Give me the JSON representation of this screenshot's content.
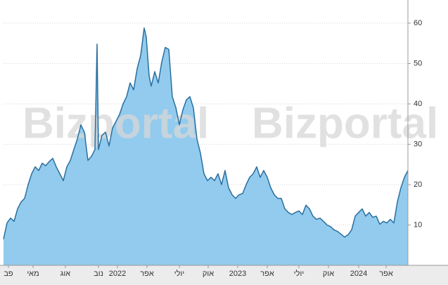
{
  "chart_data": {
    "type": "area",
    "watermarks": [
      "Bizportal",
      "Bizportal"
    ],
    "x": [
      0,
      1,
      2,
      3,
      4,
      5,
      6,
      7,
      8,
      9,
      10,
      11,
      12,
      13,
      14,
      15,
      16,
      17,
      18,
      19,
      20,
      21,
      22,
      23,
      24,
      25,
      26,
      26.6,
      27,
      28,
      29,
      30,
      31,
      32,
      33,
      34,
      35,
      36,
      37,
      38,
      39,
      40,
      40.6,
      41.4,
      42,
      43,
      44,
      45,
      46,
      47,
      48,
      49,
      50,
      51,
      52,
      53,
      54,
      55,
      56,
      57,
      58,
      59,
      60,
      61,
      62,
      63,
      64,
      65,
      66,
      67,
      68,
      69,
      70,
      71,
      72,
      73,
      74,
      75,
      76,
      77,
      78,
      79,
      80,
      81,
      82,
      83,
      84,
      85,
      86,
      87,
      88,
      89,
      90,
      91,
      92,
      93,
      94,
      95,
      96,
      97,
      98,
      99,
      100,
      101,
      102,
      103,
      104,
      105,
      106,
      107,
      108,
      109,
      110,
      111,
      112,
      113,
      114,
      115
    ],
    "values": [
      6.5,
      10.5,
      11.7,
      10.9,
      14,
      15.7,
      16.6,
      20,
      22.7,
      24.4,
      23.5,
      25.3,
      24.7,
      25.7,
      26.5,
      24.4,
      22.7,
      21,
      24.4,
      26,
      28.7,
      31.3,
      34.8,
      33,
      26,
      27,
      28.7,
      54.8,
      28.7,
      32.2,
      33,
      29.6,
      34,
      35.7,
      37.4,
      40,
      41.8,
      45.2,
      43.5,
      48.7,
      52,
      58.8,
      56.5,
      47,
      44.4,
      48,
      45.2,
      50.4,
      54,
      53.5,
      41.8,
      39.1,
      34.8,
      38.5,
      41,
      41.8,
      39,
      31.3,
      27.8,
      22.7,
      21,
      21.8,
      21,
      22.7,
      20,
      23.5,
      19.2,
      17.5,
      16.6,
      17.5,
      17.8,
      20,
      21.8,
      22.7,
      24.4,
      21.8,
      23.5,
      21.8,
      19.2,
      17.5,
      16.6,
      16.6,
      14,
      13.1,
      12.6,
      13.1,
      13.5,
      12.6,
      14.9,
      14,
      12.2,
      11.4,
      11.7,
      10.9,
      10,
      9.6,
      8.8,
      8.4,
      7.7,
      7,
      7.6,
      8.8,
      12.2,
      13.1,
      14,
      12.2,
      13.1,
      11.9,
      12.2,
      10.2,
      10.9,
      10.5,
      11.4,
      10.5,
      15.7,
      19.2,
      21.8,
      23.5
    ],
    "line_color": "#2a6f9e",
    "fill_color": "#92cbee",
    "xlim": [
      0,
      115
    ],
    "xticks": [
      {
        "value": 1.4,
        "label": "פב"
      },
      {
        "value": 8.4,
        "label": "מאי"
      },
      {
        "value": 17.6,
        "label": "אוג"
      },
      {
        "value": 27,
        "label": "נוב"
      },
      {
        "value": 32.4,
        "label": "2022"
      },
      {
        "value": 40.8,
        "label": "אפר"
      },
      {
        "value": 50,
        "label": "יולי"
      },
      {
        "value": 58.2,
        "label": "אוק"
      },
      {
        "value": 66.6,
        "label": "2023"
      },
      {
        "value": 75,
        "label": "אפר"
      },
      {
        "value": 84,
        "label": "יולי"
      },
      {
        "value": 92.4,
        "label": "אוק"
      },
      {
        "value": 101,
        "label": "2024"
      },
      {
        "value": 108.8,
        "label": "אפר"
      }
    ],
    "ylim": [
      0,
      64
    ],
    "yticks": [
      10,
      20,
      30,
      40,
      50,
      60
    ],
    "grid": true
  }
}
